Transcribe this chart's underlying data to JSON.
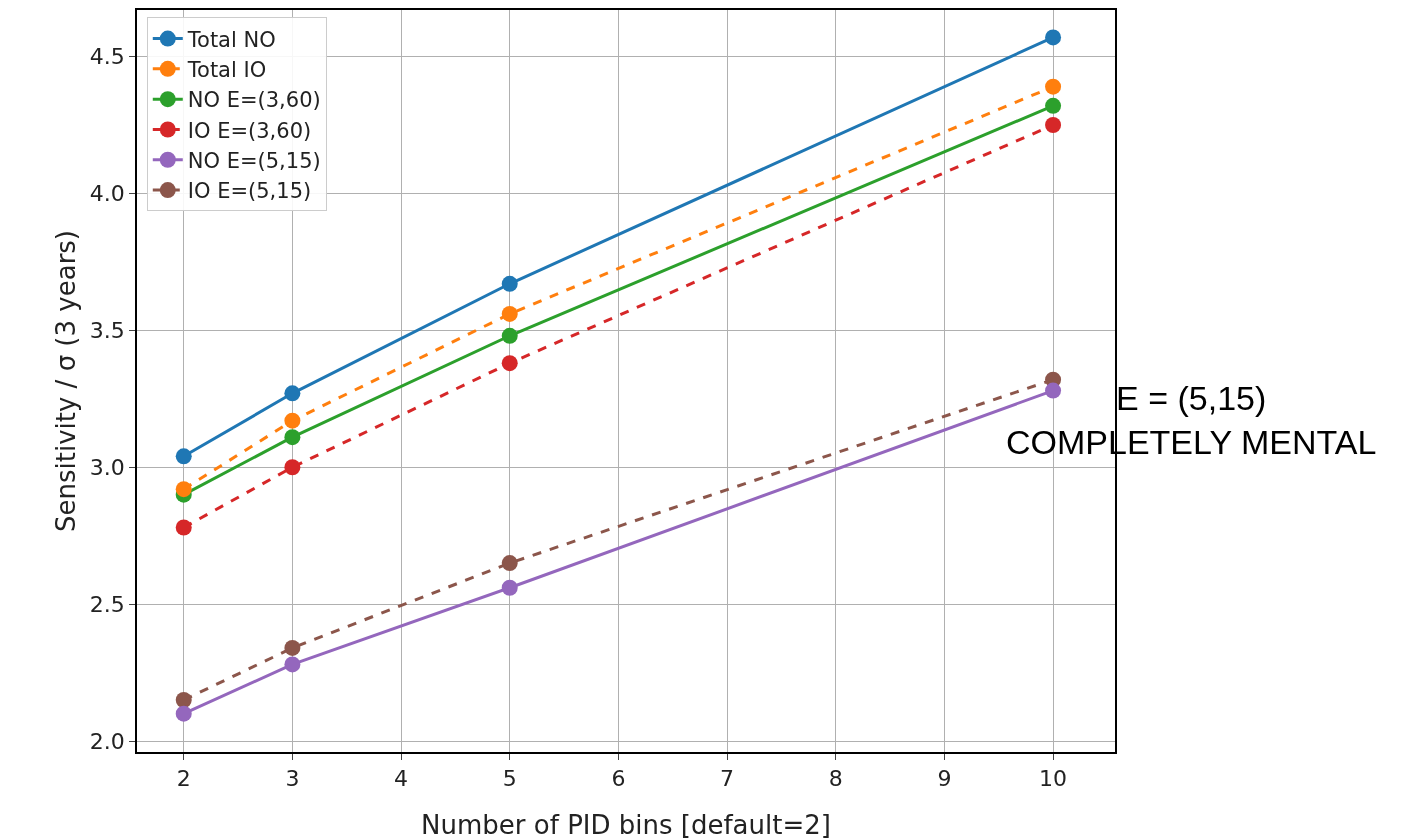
{
  "chart_data": {
    "type": "line",
    "xlabel": "Number of PID bins [default=2]",
    "ylabel": "Sensitivity / σ (3 years)",
    "x": [
      2,
      3,
      5,
      10
    ],
    "series": [
      {
        "name": "Total NO",
        "color": "#1f77b4",
        "line_style": "solid",
        "values": [
          3.04,
          3.27,
          3.67,
          4.57
        ]
      },
      {
        "name": "Total IO",
        "color": "#ff7f0e",
        "line_style": "dashed",
        "values": [
          2.92,
          3.17,
          3.56,
          4.39
        ]
      },
      {
        "name": "NO E=(3,60)",
        "color": "#2ca02c",
        "line_style": "solid",
        "values": [
          2.9,
          3.11,
          3.48,
          4.32
        ]
      },
      {
        "name": "IO E=(3,60)",
        "color": "#d62728",
        "line_style": "dashed",
        "values": [
          2.78,
          3.0,
          3.38,
          4.25
        ]
      },
      {
        "name": "NO E=(5,15)",
        "color": "#9467bd",
        "line_style": "solid",
        "values": [
          2.1,
          2.28,
          2.56,
          3.28
        ]
      },
      {
        "name": "IO E=(5,15)",
        "color": "#8c564b",
        "line_style": "dashed",
        "values": [
          2.15,
          2.34,
          2.65,
          3.32
        ]
      }
    ],
    "xlim": [
      1.57,
      10.57
    ],
    "xticks": [
      2,
      3,
      4,
      5,
      6,
      7,
      8,
      9,
      10
    ],
    "ylim": [
      1.96,
      4.67
    ],
    "yticks": [
      {
        "value": 2,
        "label": "2.0"
      },
      2.5,
      {
        "value": 3,
        "label": "3.0"
      },
      3.5,
      {
        "value": 4,
        "label": "4.0"
      },
      4.5
    ],
    "grid": true,
    "legend": "top left",
    "marker": "circle",
    "annotations": [
      {
        "text": "E = (5,15)\nCOMPLETELY MENTAL",
        "x": 10,
        "y": 3.32
      }
    ]
  }
}
